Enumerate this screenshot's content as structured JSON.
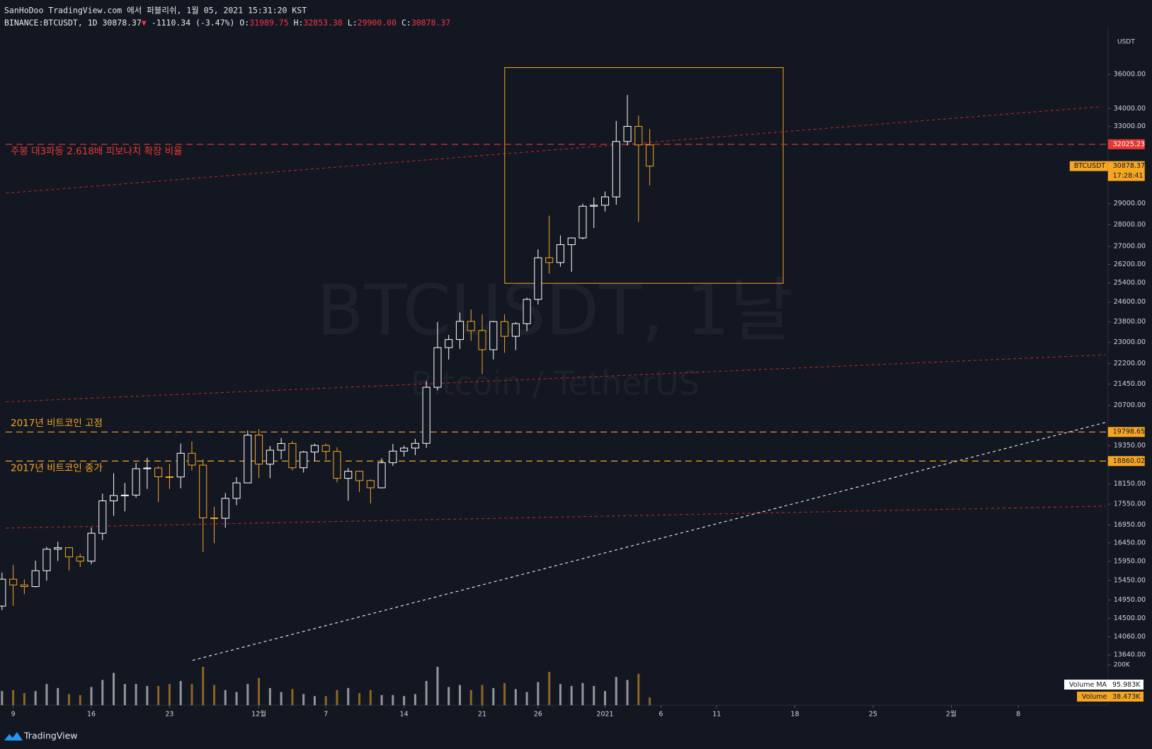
{
  "header": {
    "published": "SanHoDoo TradingView.com 에서 퍼블리쉬, 1월 05, 2021 15:31:20 KST",
    "symbol": "BINANCE:BTCUSDT, 1D",
    "price": "30878.37",
    "arrow": "▼",
    "change": "-1110.34 (-3.47%)",
    "ohlc": [
      [
        "O:",
        "31989.75"
      ],
      [
        "H:",
        "32853.38"
      ],
      [
        "L:",
        "29900.00"
      ],
      [
        "C:",
        "30878.37"
      ]
    ]
  },
  "footer": "TradingView",
  "chart_data": {
    "type": "candlestick",
    "watermark": "BTCUSDT, 1날",
    "watermark_subtitle": "Bitcoin / TetherUS",
    "currency": "USDT",
    "log": true,
    "grid": false,
    "up_color": "#ffffff",
    "down_color": "#f5a623",
    "background": "#131722",
    "xlim": [
      -1.18,
      98.03
    ],
    "xticks": [
      {
        "value": 0,
        "label": "9"
      },
      {
        "value": 7,
        "label": "16"
      },
      {
        "value": 14,
        "label": "23"
      },
      {
        "value": 22,
        "label": "12월"
      },
      {
        "value": 28,
        "label": "7"
      },
      {
        "value": 35,
        "label": "14"
      },
      {
        "value": 42,
        "label": "21"
      },
      {
        "value": 47,
        "label": "26"
      },
      {
        "value": 53,
        "label": "2021"
      },
      {
        "value": 58,
        "label": "6"
      },
      {
        "value": 63,
        "label": "11"
      },
      {
        "value": 70,
        "label": "18"
      },
      {
        "value": 77,
        "label": "25"
      },
      {
        "value": 84,
        "label": "2월"
      },
      {
        "value": 90,
        "label": "8"
      }
    ],
    "ylim": [
      12540,
      38570
    ],
    "yticks": [
      {
        "value": 36000,
        "label": "36000.00"
      },
      {
        "value": 34000,
        "label": "34000.00"
      },
      {
        "value": 33000,
        "label": "33000.00"
      },
      {
        "value": 29000,
        "label": "29000.00"
      },
      {
        "value": 28000,
        "label": "28000.00"
      },
      {
        "value": 27000,
        "label": "27000.00"
      },
      {
        "value": 26200,
        "label": "26200.00"
      },
      {
        "value": 25400,
        "label": "25400.00"
      },
      {
        "value": 24600,
        "label": "24600.00"
      },
      {
        "value": 23800,
        "label": "23800.00"
      },
      {
        "value": 23000,
        "label": "23000.00"
      },
      {
        "value": 22200,
        "label": "22200.00"
      },
      {
        "value": 21450,
        "label": "21450.00"
      },
      {
        "value": 20700,
        "label": "20700.00"
      },
      {
        "value": 19350,
        "label": "19350.00"
      },
      {
        "value": 18150,
        "label": "18150.00"
      },
      {
        "value": 17550,
        "label": "17550.00"
      },
      {
        "value": 16950,
        "label": "16950.00"
      },
      {
        "value": 16450,
        "label": "16450.00"
      },
      {
        "value": 15950,
        "label": "15950.00"
      },
      {
        "value": 15450,
        "label": "15450.00"
      },
      {
        "value": 14950,
        "label": "14950.00"
      },
      {
        "value": 14500,
        "label": "14500.00"
      },
      {
        "value": 14060,
        "label": "14060.00"
      },
      {
        "value": 13640,
        "label": "13640.00"
      }
    ],
    "x": [
      -1,
      0,
      1,
      2,
      3,
      4,
      5,
      6,
      7,
      8,
      9,
      10,
      11,
      12,
      13,
      14,
      15,
      16,
      17,
      18,
      19,
      20,
      21,
      22,
      23,
      24,
      25,
      26,
      27,
      28,
      29,
      30,
      31,
      32,
      33,
      34,
      35,
      36,
      37,
      38,
      39,
      40,
      41,
      42,
      43,
      44,
      45,
      46,
      47,
      48,
      49,
      50,
      51,
      52,
      53,
      54,
      55,
      56,
      57
    ],
    "series": [
      {
        "name": "BTCUSDT",
        "countdown": "17:28:41",
        "open": [
          14800,
          15480,
          15332,
          15290,
          15701,
          16276,
          16317,
          16068,
          15955,
          16716,
          17645,
          17804,
          17817,
          18621,
          18642,
          18370,
          18364,
          19107,
          18732,
          17150,
          17139,
          17719,
          18185,
          19695,
          18764,
          19204,
          19421,
          18650,
          19147,
          19359,
          19166,
          18324,
          18541,
          18254,
          18036,
          18808,
          19175,
          19273,
          19426,
          21335,
          22797,
          23107,
          23821,
          23455,
          22719,
          23810,
          23232,
          23729,
          24712,
          26493,
          26281,
          27079,
          27385,
          28875,
          28923,
          29331,
          32178,
          33000,
          31989.75
        ],
        "high": [
          15650,
          15850,
          15470,
          15965,
          16340,
          16480,
          16330,
          16150,
          16880,
          17860,
          18480,
          18180,
          18800,
          18965,
          18700,
          18770,
          19420,
          19485,
          18915,
          17470,
          17880,
          18360,
          19850,
          19890,
          19340,
          19600,
          19500,
          19180,
          19420,
          19420,
          19300,
          18640,
          18560,
          18290,
          18950,
          19410,
          19350,
          19570,
          21560,
          23800,
          23285,
          24170,
          24295,
          24100,
          23837,
          24100,
          23789,
          24789,
          26867,
          28422,
          27500,
          27410,
          28996,
          29300,
          29600,
          33300,
          34778,
          33600,
          32853.38
        ],
        "low": [
          14700,
          14805,
          15100,
          15270,
          15440,
          15960,
          15710,
          15800,
          15870,
          16530,
          17210,
          17340,
          17740,
          18000,
          17610,
          18000,
          18020,
          18570,
          16200,
          16440,
          16870,
          17520,
          18180,
          18330,
          18330,
          18920,
          18570,
          18500,
          18860,
          18900,
          18200,
          17650,
          17910,
          17570,
          18020,
          18710,
          19000,
          19050,
          19280,
          21230,
          22350,
          22750,
          23060,
          21815,
          22353,
          22600,
          22703,
          23433,
          24500,
          25800,
          26101,
          25880,
          27320,
          27850,
          28624,
          28946,
          31963,
          28130,
          29900
        ],
        "close": [
          15480,
          15332,
          15290,
          15701,
          16276,
          16317,
          16068,
          15955,
          16716,
          17645,
          17804,
          17817,
          18621,
          18642,
          18370,
          18364,
          19107,
          18732,
          17150,
          17139,
          17719,
          18185,
          19695,
          18764,
          19204,
          19421,
          18650,
          19147,
          19359,
          19166,
          18324,
          18541,
          18254,
          18036,
          18808,
          19175,
          19273,
          19426,
          21335,
          22797,
          23107,
          23821,
          23455,
          22719,
          23810,
          23232,
          23729,
          24712,
          26493,
          26281,
          27079,
          27385,
          28875,
          28923,
          29331,
          32178,
          33000,
          31989.75,
          30878.37
        ]
      }
    ],
    "hlines": [
      {
        "value": 32025.23,
        "text": "주봉 대3파동 2.618배 피보나치 확장 비율",
        "color": "#e53935",
        "text_position": "below"
      },
      {
        "value": 19798.65,
        "text": "2017년 비트코인 고점",
        "color": "#f5a623",
        "text_position": "above"
      },
      {
        "value": 18860.02,
        "text": "2017년 비트코인 종가",
        "color": "#f5a623",
        "text_position": "below"
      }
    ],
    "volume": {
      "name": "Volume",
      "ma_name": "Volume MA",
      "ma_label": "95.983K",
      "last_label": "38.473K",
      "ylim": [
        0,
        800000
      ],
      "yticks": [
        {
          "value": 200000,
          "label": "200K"
        }
      ],
      "values": [
        70000,
        75000,
        60000,
        70000,
        105000,
        85000,
        55000,
        50000,
        90000,
        125000,
        160000,
        105000,
        105000,
        95000,
        95000,
        105000,
        120000,
        105000,
        190000,
        100000,
        75000,
        65000,
        105000,
        135000,
        85000,
        65000,
        80000,
        55000,
        45000,
        45000,
        75000,
        85000,
        60000,
        75000,
        50000,
        50000,
        45000,
        55000,
        120000,
        190000,
        90000,
        100000,
        75000,
        100000,
        85000,
        110000,
        80000,
        65000,
        115000,
        165000,
        105000,
        95000,
        110000,
        95000,
        70000,
        140000,
        125000,
        155000,
        38473
      ]
    }
  }
}
